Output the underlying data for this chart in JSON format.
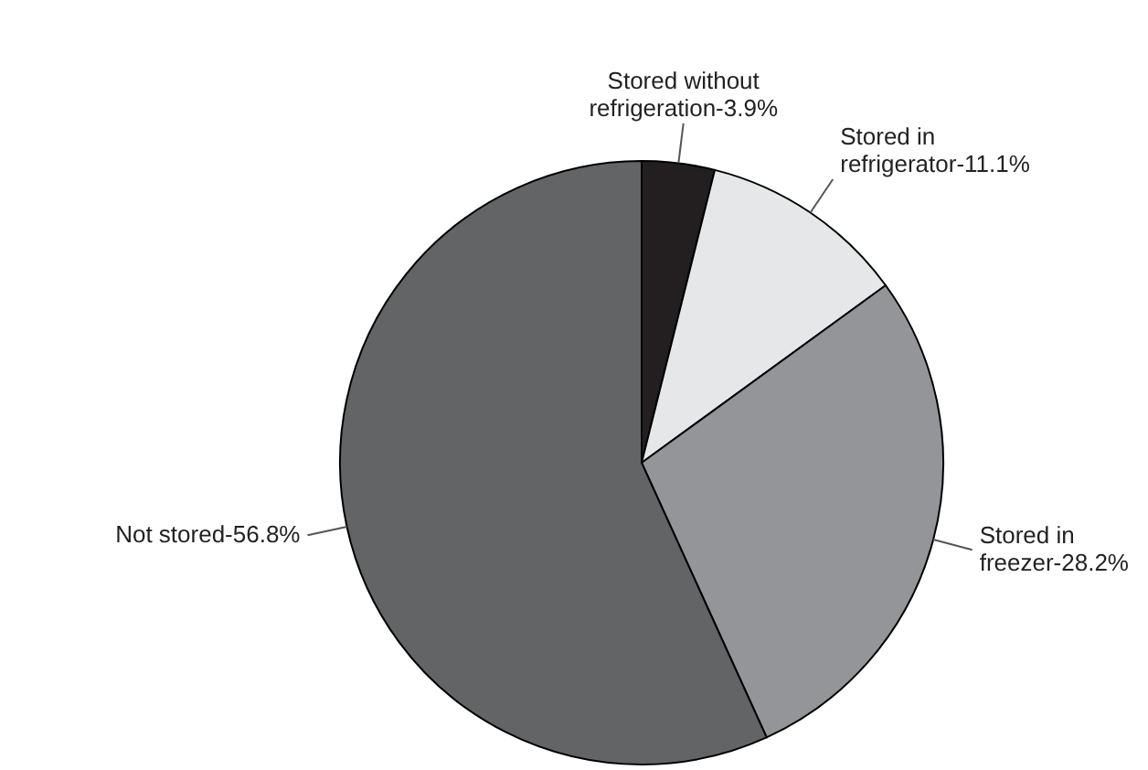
{
  "chart_data": {
    "type": "pie",
    "categories": [
      "Stored without refrigeration-3.9%",
      "Stored in refrigerator-11.1%",
      "Stored in freezer-28.2%",
      "Not stored-56.8%"
    ],
    "values": [
      3.9,
      11.1,
      28.2,
      56.8
    ],
    "colors": [
      "#231f20",
      "#e6e7e8",
      "#939598",
      "#636466"
    ],
    "legend": false
  }
}
